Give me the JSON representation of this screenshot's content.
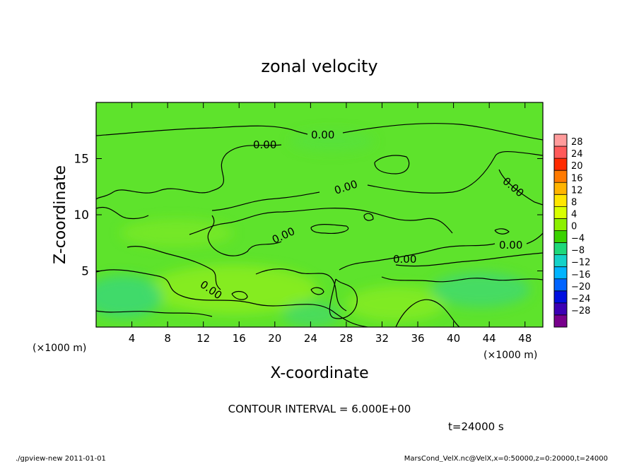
{
  "chart_data": {
    "type": "heatmap",
    "title": "zonal velocity",
    "xlabel": "X-coordinate",
    "ylabel": "Z-coordinate",
    "x_unit_note": "(×1000 m)",
    "y_unit_note": "(×1000 m)",
    "xlim": [
      0,
      50
    ],
    "ylim": [
      0,
      20
    ],
    "x_ticks": [
      4,
      8,
      12,
      16,
      20,
      24,
      28,
      32,
      36,
      40,
      44,
      48
    ],
    "y_ticks": [
      5,
      10,
      15
    ],
    "colorbar_levels": [
      28,
      24,
      20,
      16,
      12,
      8,
      4,
      0,
      -4,
      -8,
      -12,
      -16,
      -20,
      -24,
      -28
    ],
    "colorbar_colors": [
      "#ff9c9c",
      "#ff5a5a",
      "#ff2a00",
      "#ff7a00",
      "#ffb400",
      "#ffe600",
      "#d8ff00",
      "#8cf000",
      "#3ad200",
      "#1ed87a",
      "#14d2c8",
      "#00b4ff",
      "#0064ff",
      "#0010e0",
      "#3c00b4",
      "#78008c"
    ],
    "contour_label": "0.00",
    "contour_interval_text": "CONTOUR INTERVAL = 6.000E+00",
    "time_text": "t=24000 s",
    "field_colors": {
      "base": "#5ee32c",
      "light": "#96f01e",
      "cool": "#3ad77a"
    }
  },
  "footer": {
    "left": "./gpview-new   2011-01-01",
    "right": "MarsCond_VelX.nc@VelX,x=0:50000,z=0:20000,t=24000"
  }
}
